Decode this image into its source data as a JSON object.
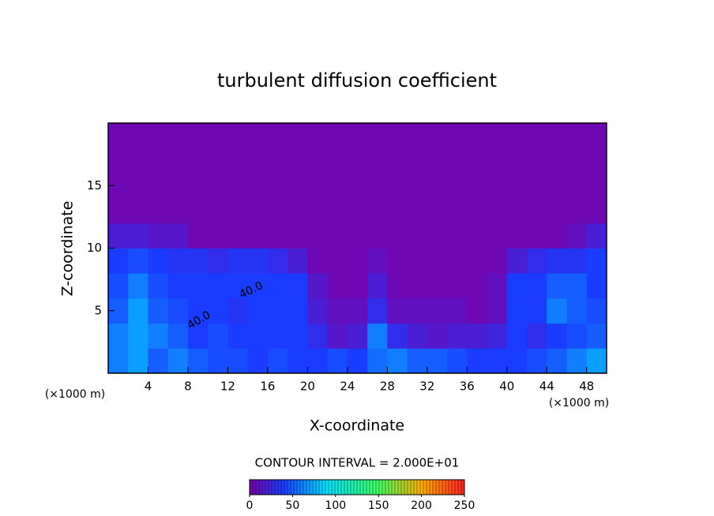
{
  "chart_data": {
    "type": "heatmap",
    "title": "turbulent diffusion coefficient",
    "xlabel": "X-coordinate",
    "ylabel": "Z-coordinate",
    "x_unit_left": "(×1000 m)",
    "x_unit_right": "(×1000 m)",
    "xlim": [
      0,
      50
    ],
    "ylim": [
      0,
      20
    ],
    "xticks": [
      4,
      8,
      12,
      16,
      20,
      24,
      28,
      32,
      36,
      40,
      44,
      48
    ],
    "yticks": [
      5,
      10,
      15
    ],
    "x_edges": [
      0,
      2,
      4,
      6,
      8,
      10,
      12,
      14,
      16,
      18,
      20,
      22,
      24,
      26,
      28,
      30,
      32,
      34,
      36,
      38,
      40,
      42,
      44,
      46,
      48,
      50
    ],
    "y_edges": [
      0,
      2,
      4,
      6,
      8,
      10,
      12,
      14,
      16,
      18,
      20
    ],
    "z": [
      [
        60,
        70,
        50,
        60,
        50,
        45,
        45,
        40,
        45,
        40,
        40,
        45,
        40,
        55,
        60,
        50,
        50,
        45,
        40,
        40,
        40,
        45,
        50,
        60,
        70
      ],
      [
        60,
        70,
        60,
        50,
        40,
        45,
        40,
        40,
        40,
        40,
        30,
        15,
        20,
        60,
        30,
        20,
        15,
        20,
        20,
        25,
        40,
        30,
        40,
        45,
        50
      ],
      [
        50,
        70,
        50,
        45,
        40,
        40,
        35,
        40,
        40,
        40,
        20,
        10,
        10,
        30,
        10,
        10,
        10,
        10,
        5,
        10,
        40,
        40,
        60,
        50,
        45
      ],
      [
        45,
        60,
        45,
        40,
        40,
        40,
        40,
        40,
        40,
        40,
        15,
        5,
        5,
        20,
        5,
        5,
        5,
        5,
        5,
        10,
        40,
        40,
        50,
        50,
        40
      ],
      [
        40,
        45,
        40,
        35,
        35,
        30,
        35,
        35,
        30,
        20,
        5,
        5,
        5,
        10,
        5,
        5,
        5,
        5,
        5,
        5,
        20,
        30,
        35,
        35,
        40
      ],
      [
        20,
        20,
        15,
        15,
        5,
        5,
        5,
        5,
        5,
        5,
        5,
        5,
        5,
        5,
        5,
        5,
        5,
        5,
        5,
        5,
        5,
        5,
        5,
        10,
        20
      ],
      [
        5,
        5,
        5,
        5,
        5,
        5,
        5,
        5,
        5,
        5,
        5,
        5,
        5,
        5,
        5,
        5,
        5,
        5,
        5,
        5,
        5,
        5,
        5,
        5,
        5
      ],
      [
        5,
        5,
        5,
        5,
        5,
        5,
        5,
        5,
        5,
        5,
        5,
        5,
        5,
        5,
        5,
        5,
        5,
        5,
        5,
        5,
        5,
        5,
        5,
        5,
        5
      ],
      [
        5,
        5,
        5,
        5,
        5,
        5,
        5,
        5,
        5,
        5,
        5,
        5,
        5,
        5,
        5,
        5,
        5,
        5,
        5,
        5,
        5,
        5,
        5,
        5,
        5
      ],
      [
        5,
        5,
        5,
        5,
        5,
        5,
        5,
        5,
        5,
        5,
        5,
        5,
        5,
        5,
        5,
        5,
        5,
        5,
        5,
        5,
        5,
        5,
        5,
        5,
        5
      ]
    ],
    "contour_labels": [
      "40.0",
      "40.0"
    ],
    "contour_interval": "CONTOUR INTERVAL = 2.000E+01",
    "clim": [
      0,
      250
    ],
    "cticks": [
      0,
      50,
      100,
      150,
      200,
      250
    ]
  }
}
